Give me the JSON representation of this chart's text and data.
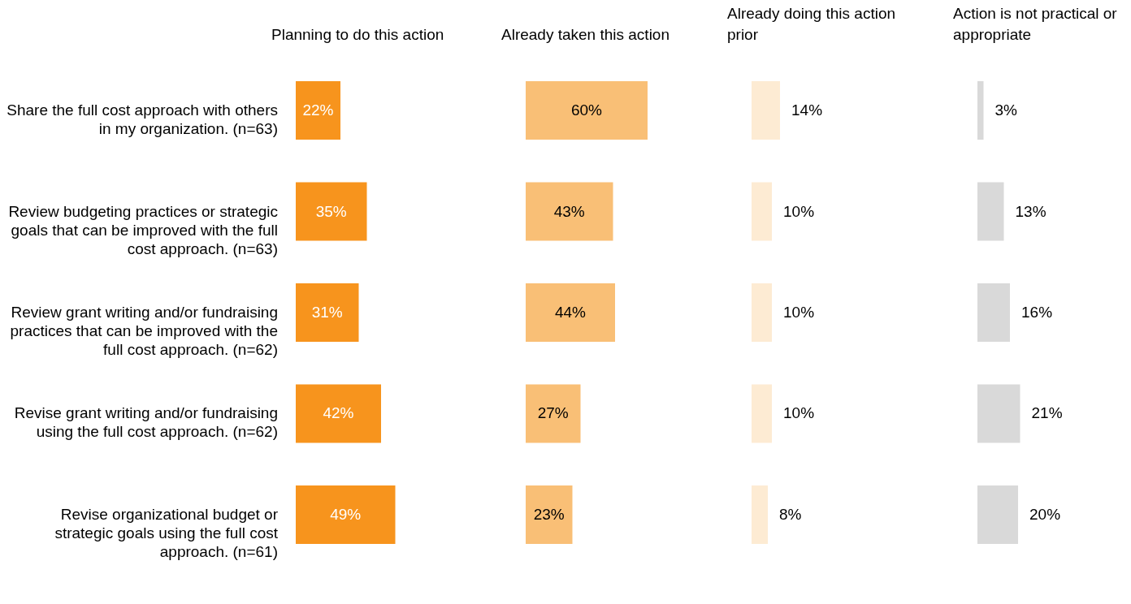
{
  "chart_data": [
    {
      "type": "bar",
      "orientation": "horizontal",
      "title": "Planning to do this action",
      "tick_labels": "y",
      "categories": [
        "Share the full cost approach with others in my organization. (n=63)",
        "Review budgeting practices or strategic goals that can be improved with the full cost approach. (n=63)",
        "Review grant writing and/or fundraising practices that can be improved with the full cost approach. (n=62)",
        "Revise grant writing and/or fundraising using the full cost approach. (n=62)",
        "Revise organizational budget or strategic goals using the full cost approach. (n=61)"
      ],
      "values": [
        22,
        35,
        31,
        42,
        49
      ],
      "color": "#f7941d",
      "value_labels": [
        "22%",
        "35%",
        "31%",
        "42%",
        "49%"
      ]
    },
    {
      "type": "bar",
      "orientation": "horizontal",
      "title": "Already taken this action",
      "tick_labels": false,
      "values": [
        60,
        43,
        44,
        27,
        23
      ],
      "color": "#f9bf76",
      "value_labels": [
        "60%",
        "43%",
        "44%",
        "27%",
        "23%"
      ]
    },
    {
      "type": "bar",
      "orientation": "horizontal",
      "title": "Already doing this action prior",
      "tick_labels": false,
      "values": [
        14,
        10,
        10,
        10,
        8
      ],
      "color": "#fdebd3",
      "value_labels": [
        "14%",
        "10%",
        "10%",
        "10%",
        "8%"
      ]
    },
    {
      "type": "bar",
      "orientation": "horizontal",
      "title": "Action is not practical or appropriate",
      "tick_labels": false,
      "values": [
        3,
        13,
        16,
        21,
        20
      ],
      "color": "#d9d9d9",
      "value_labels": [
        "3%",
        "13%",
        "16%",
        "21%",
        "20%"
      ]
    }
  ]
}
